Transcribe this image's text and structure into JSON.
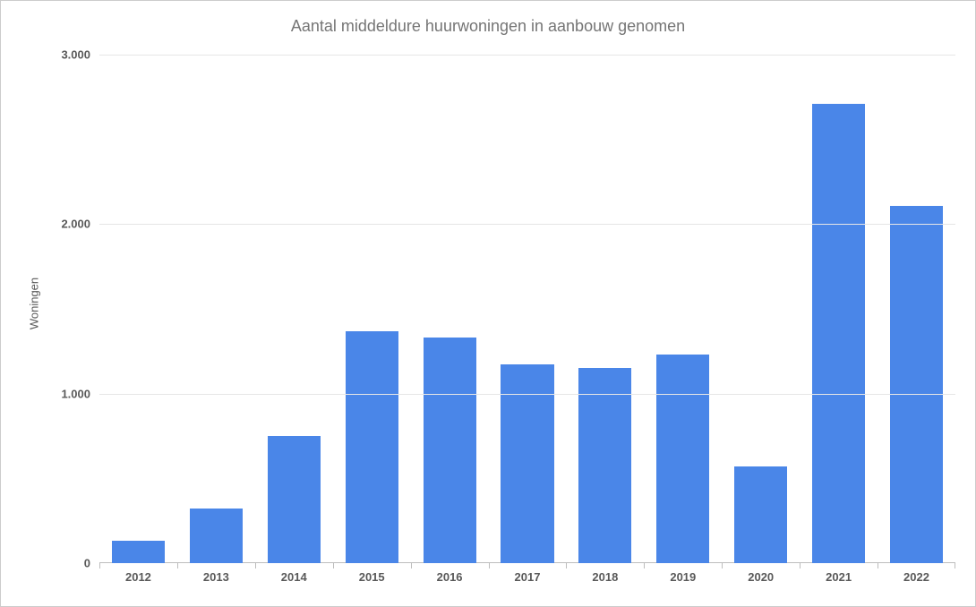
{
  "chart": {
    "type": "bar",
    "title": "Aantal middeldure huurwoningen in aanbouw genomen",
    "title_color": "#757575",
    "title_fontsize": 18,
    "ylabel": "Woningen",
    "ylabel_color": "#595959",
    "ylabel_fontsize": 13,
    "categories": [
      "2012",
      "2013",
      "2014",
      "2015",
      "2016",
      "2017",
      "2018",
      "2019",
      "2020",
      "2021",
      "2022"
    ],
    "values": [
      130,
      320,
      750,
      1370,
      1330,
      1170,
      1150,
      1230,
      570,
      2710,
      2110
    ],
    "bar_color": "#4a86e8",
    "bar_width": 0.68,
    "ylim": [
      0,
      3000
    ],
    "ytick_step": 1000,
    "ytick_labels": [
      "0",
      "1.000",
      "2.000",
      "3.000"
    ],
    "xtick_fontsize": 13,
    "xtick_fontweight": 700,
    "ytick_fontsize": 13,
    "ytick_fontweight": 700,
    "tick_label_color": "#595959",
    "background_color": "#ffffff",
    "frame_border_color": "#cccccc",
    "grid_color": "#e6e6e6",
    "baseline_color": "#bdbdbd",
    "xtick_sep_color": "#bdbdbd"
  }
}
